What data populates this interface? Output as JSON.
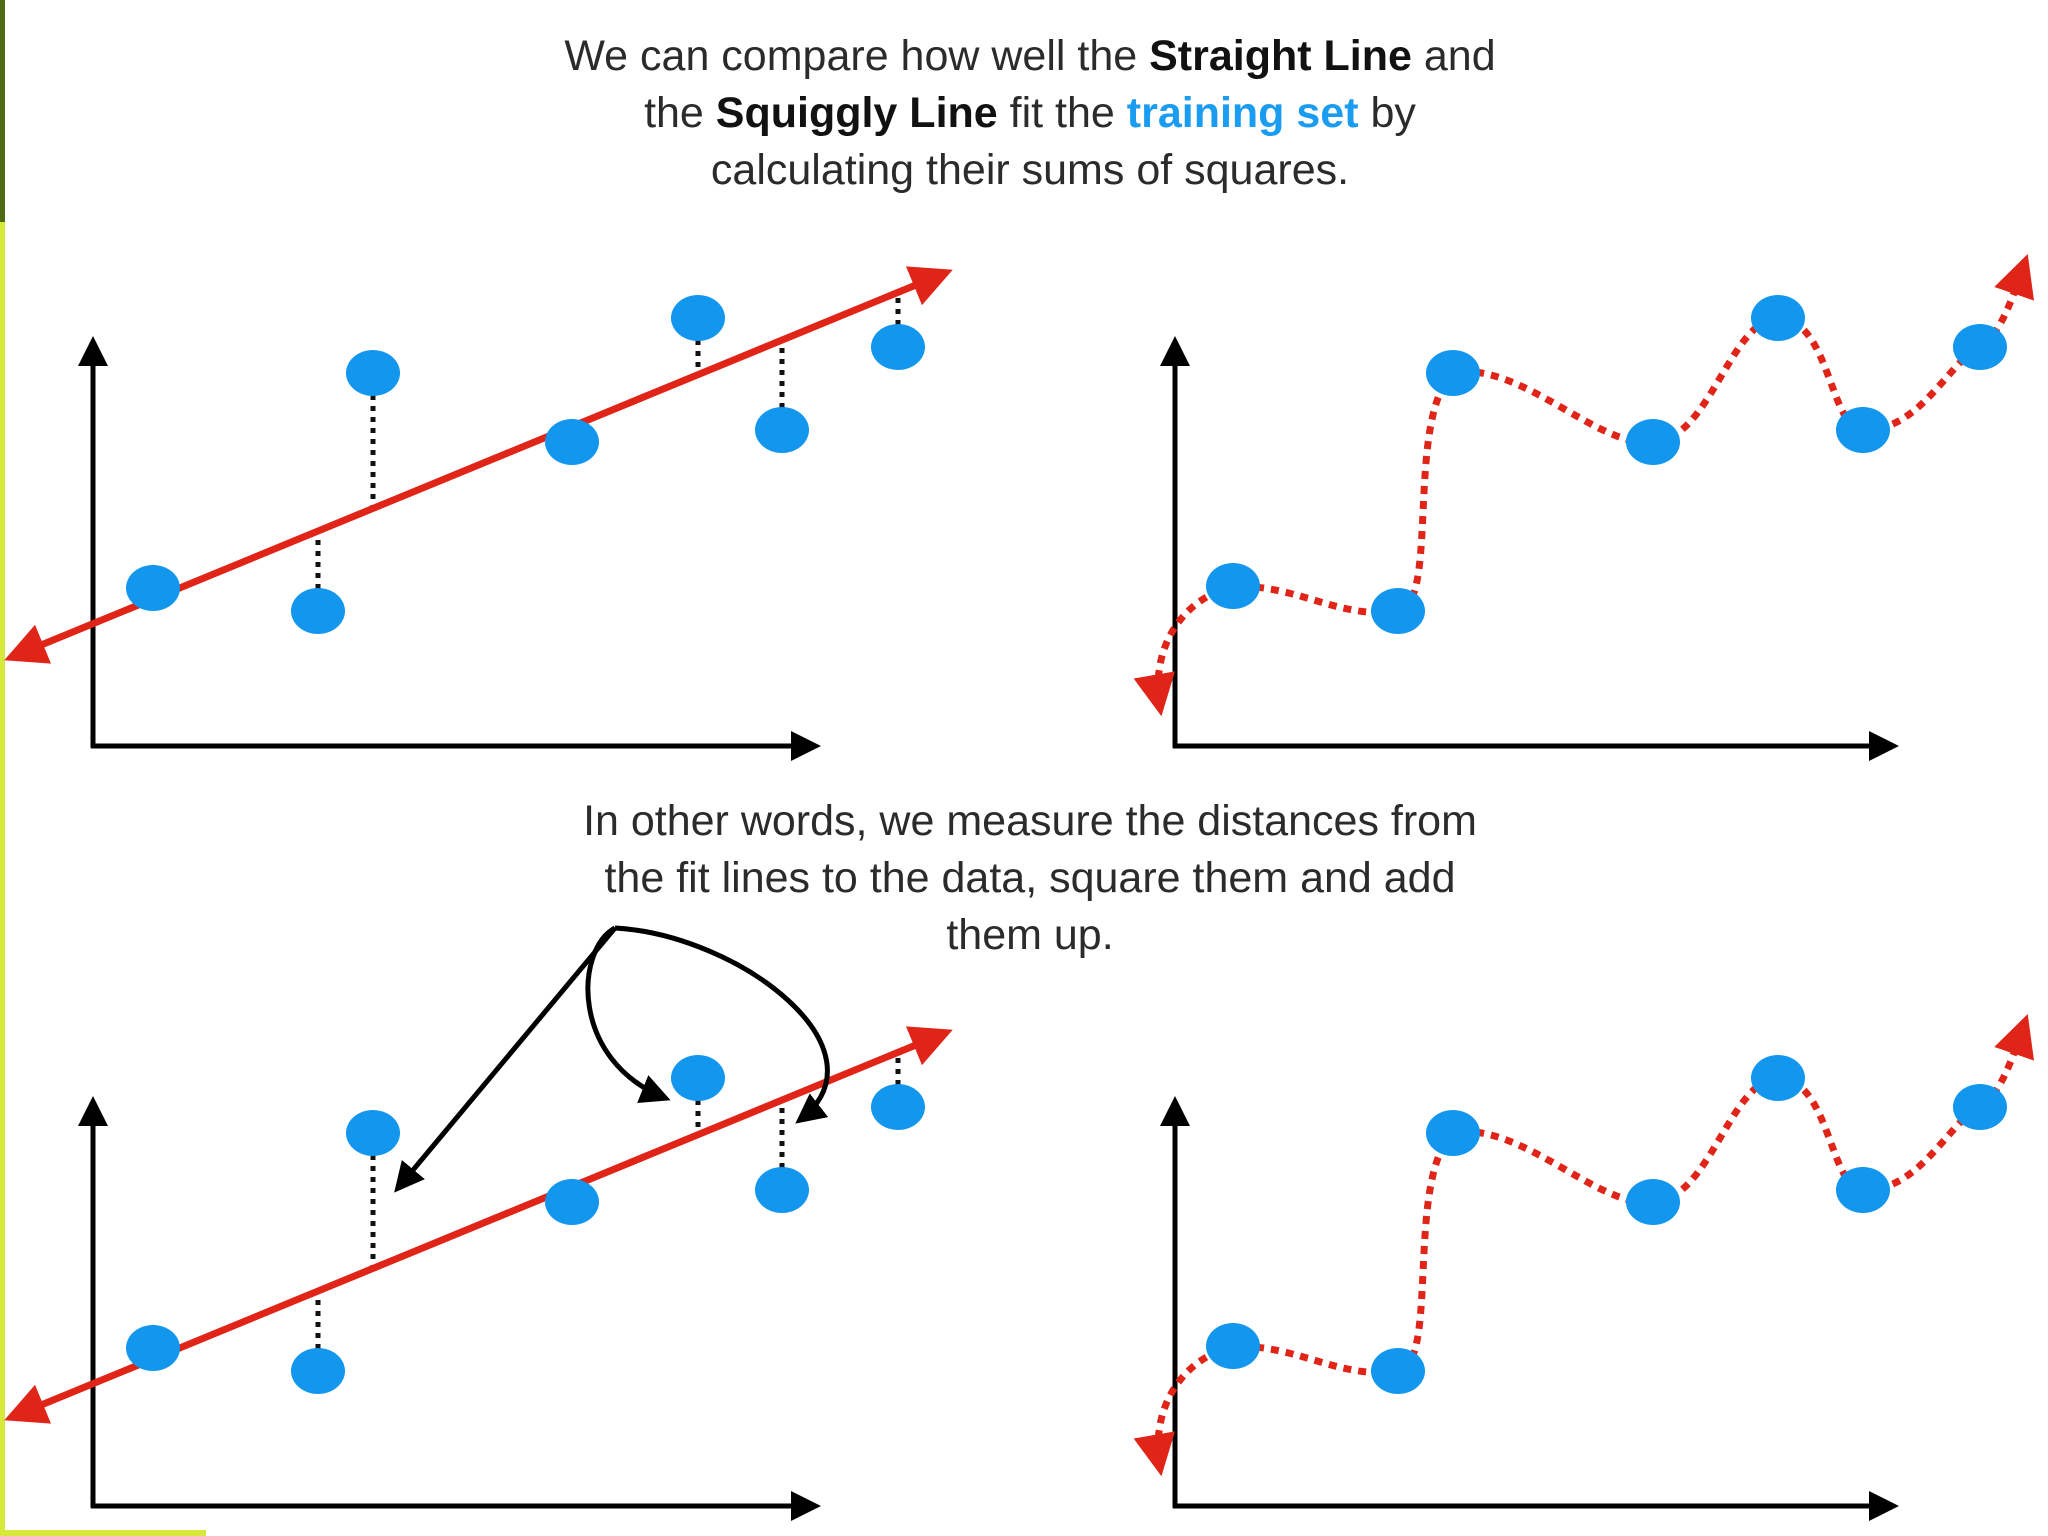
{
  "colors": {
    "accent_blue": "#1a9cf0",
    "point_blue": "#1296ee",
    "fit_red": "#e02418",
    "axis_black": "#000000",
    "border_yellow": "#d6e83a",
    "border_green": "#4c6a12"
  },
  "caption_top": {
    "part1": "We can compare how well the ",
    "strong1": "Straight Line",
    "part2": " and",
    "part3": "the ",
    "strong2": "Squiggly Line",
    "part4": " fit the ",
    "highlight": "training set",
    "part5": " by",
    "line3": "calculating their sums of squares."
  },
  "caption_mid": {
    "line1": "In other words, we measure the distances from",
    "line2": "the fit lines to the data, square them and add",
    "line3": "them up."
  },
  "panels": [
    "straight-line-fit-top",
    "squiggly-line-fit-top",
    "straight-line-fit-bottom",
    "squiggly-line-fit-bottom"
  ]
}
